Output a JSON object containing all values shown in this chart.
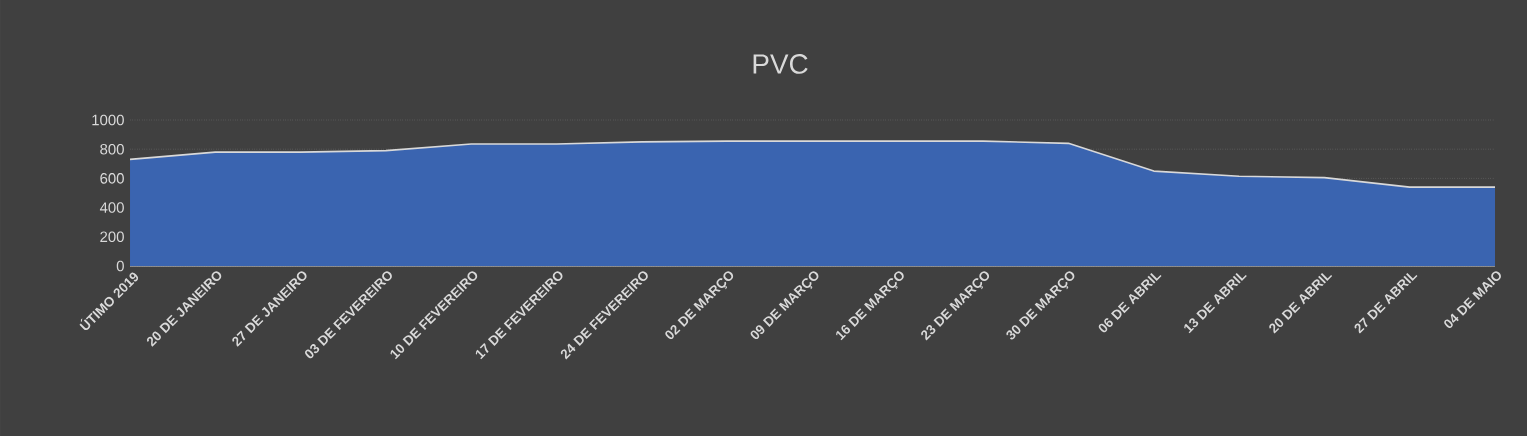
{
  "chart_data": {
    "type": "area",
    "title": "PVC",
    "categories": [
      "ÚTIMO 2019",
      "20 DE JANEIRO",
      "27 DE JANEIRO",
      "03 DE FEVEREIRO",
      "10 DE FEVEREIRO",
      "17 DE FEVEREIRO",
      "24 DE FEVEREIRO",
      "02 DE MARÇO",
      "09 DE MARÇO",
      "16 DE MARÇO",
      "23 DE MARÇO",
      "30 DE MARÇO",
      "06 DE ABRIL",
      "13 DE ABRIL",
      "20 DE ABRIL",
      "27 DE ABRIL",
      "04 DE MAIO"
    ],
    "series": [
      {
        "color": "#3a64b0",
        "values": [
          730,
          780,
          780,
          790,
          835,
          835,
          850,
          855,
          855,
          855,
          855,
          840,
          650,
          615,
          605,
          540,
          540
        ]
      }
    ],
    "ylim": [
      0,
      1000
    ],
    "yticks": [
      0,
      200,
      400,
      600,
      800,
      1000
    ],
    "grid": "y"
  }
}
